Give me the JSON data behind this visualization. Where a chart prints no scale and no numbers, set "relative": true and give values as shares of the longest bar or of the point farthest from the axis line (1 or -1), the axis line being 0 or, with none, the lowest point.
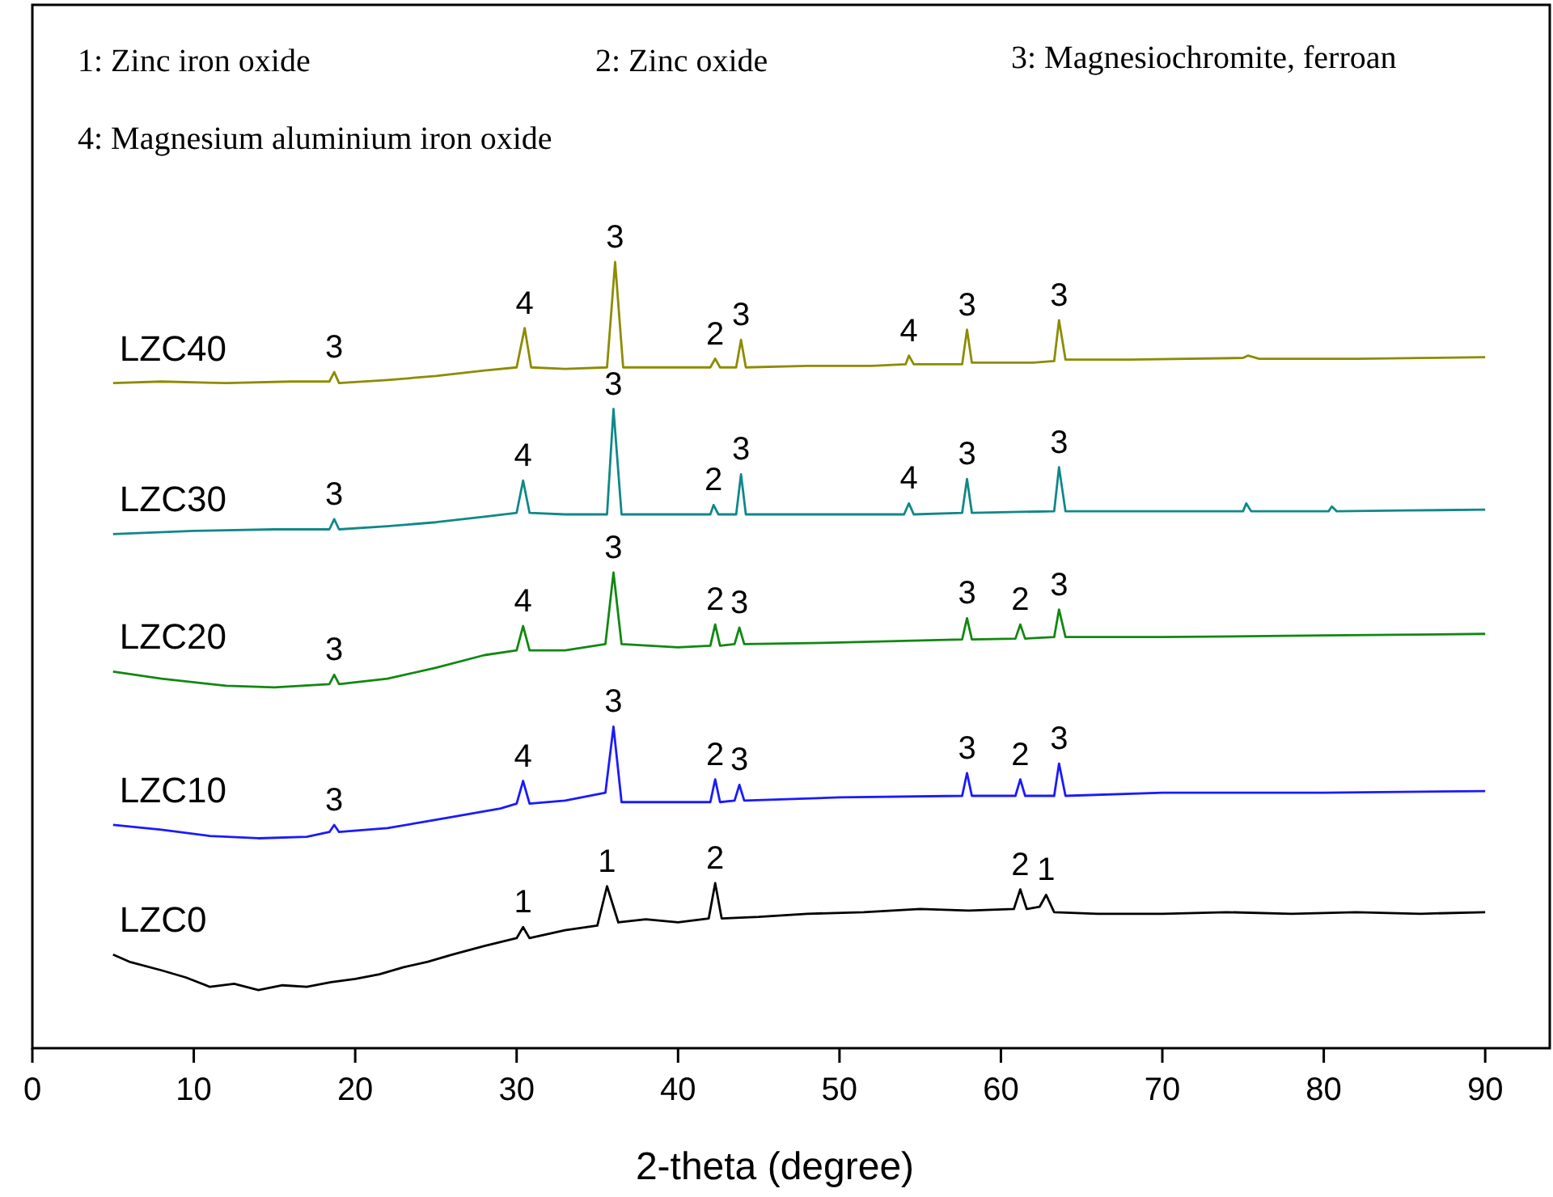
{
  "chart_data": {
    "type": "line",
    "relative": true,
    "xlabel": "2-theta (degree)",
    "xlim": [
      0,
      94
    ],
    "xticks": [
      0,
      10,
      20,
      30,
      40,
      50,
      60,
      70,
      80,
      90
    ],
    "grid": false,
    "legend": false,
    "marker": "none",
    "line_style": "solid",
    "series": [
      {
        "name": "LZC40",
        "color": "#8c8c00",
        "x": [
          5,
          8,
          12,
          16,
          18.4,
          18.7,
          19.0,
          22,
          25,
          28,
          30.0,
          30.5,
          30.9,
          33,
          35.6,
          36.1,
          36.6,
          40,
          42.0,
          42.3,
          42.6,
          43.6,
          43.9,
          44.2,
          48,
          52,
          54.1,
          54.3,
          54.6,
          57.6,
          57.9,
          58.2,
          62,
          63.3,
          63.6,
          64.0,
          68,
          75,
          75.3,
          76,
          82,
          86,
          90
        ],
        "values": [
          0.846,
          0.848,
          0.846,
          0.848,
          0.848,
          0.86,
          0.846,
          0.85,
          0.855,
          0.862,
          0.866,
          0.916,
          0.866,
          0.864,
          0.866,
          1.0,
          0.866,
          0.866,
          0.866,
          0.877,
          0.866,
          0.866,
          0.901,
          0.866,
          0.868,
          0.868,
          0.87,
          0.881,
          0.87,
          0.87,
          0.914,
          0.872,
          0.872,
          0.874,
          0.926,
          0.876,
          0.876,
          0.878,
          0.881,
          0.877,
          0.877,
          0.878,
          0.879
        ]
      },
      {
        "name": "LZC30",
        "color": "#108888",
        "x": [
          5,
          10,
          15,
          18.4,
          18.7,
          19.0,
          22,
          25,
          28,
          30.0,
          30.4,
          30.8,
          33,
          35.6,
          36.0,
          36.5,
          40,
          42.0,
          42.2,
          42.5,
          43.6,
          43.9,
          44.2,
          48,
          54.0,
          54.3,
          54.6,
          57.6,
          57.9,
          58.2,
          63.3,
          63.6,
          64.0,
          70,
          75.0,
          75.2,
          75.5,
          80.3,
          80.5,
          80.8,
          85,
          90
        ],
        "values": [
          0.654,
          0.658,
          0.66,
          0.66,
          0.673,
          0.66,
          0.664,
          0.669,
          0.676,
          0.681,
          0.722,
          0.681,
          0.679,
          0.679,
          0.813,
          0.679,
          0.679,
          0.679,
          0.691,
          0.679,
          0.679,
          0.73,
          0.679,
          0.679,
          0.679,
          0.693,
          0.679,
          0.681,
          0.724,
          0.681,
          0.683,
          0.739,
          0.683,
          0.683,
          0.683,
          0.693,
          0.683,
          0.683,
          0.689,
          0.683,
          0.684,
          0.685
        ]
      },
      {
        "name": "LZC20",
        "color": "#118811",
        "x": [
          5,
          8,
          12,
          15,
          18.4,
          18.7,
          19.0,
          22,
          25,
          28,
          30.0,
          30.4,
          30.8,
          33,
          35.5,
          36.0,
          36.5,
          40,
          42.0,
          42.3,
          42.6,
          43.5,
          43.8,
          44.1,
          50,
          57.6,
          57.9,
          58.2,
          60.9,
          61.2,
          61.5,
          63.3,
          63.6,
          64.0,
          70,
          80,
          90
        ],
        "values": [
          0.479,
          0.47,
          0.461,
          0.459,
          0.463,
          0.475,
          0.463,
          0.47,
          0.484,
          0.5,
          0.506,
          0.537,
          0.506,
          0.506,
          0.514,
          0.605,
          0.514,
          0.51,
          0.512,
          0.539,
          0.512,
          0.514,
          0.535,
          0.514,
          0.516,
          0.52,
          0.547,
          0.52,
          0.521,
          0.539,
          0.521,
          0.523,
          0.558,
          0.523,
          0.523,
          0.525,
          0.527
        ]
      },
      {
        "name": "LZC10",
        "color": "#1a1aff",
        "x": [
          5,
          8,
          11,
          14,
          17,
          18.4,
          18.7,
          19.0,
          22,
          26,
          29,
          30.0,
          30.4,
          30.8,
          33,
          35.5,
          36.0,
          36.5,
          40,
          42.0,
          42.3,
          42.6,
          43.5,
          43.8,
          44.1,
          50,
          57.6,
          57.9,
          58.2,
          60.9,
          61.2,
          61.5,
          63.3,
          63.6,
          64.0,
          70,
          80,
          90
        ],
        "values": [
          0.284,
          0.278,
          0.27,
          0.267,
          0.269,
          0.275,
          0.284,
          0.275,
          0.28,
          0.294,
          0.305,
          0.311,
          0.34,
          0.311,
          0.315,
          0.325,
          0.409,
          0.313,
          0.313,
          0.313,
          0.342,
          0.313,
          0.315,
          0.335,
          0.315,
          0.319,
          0.321,
          0.35,
          0.321,
          0.321,
          0.342,
          0.321,
          0.321,
          0.362,
          0.321,
          0.325,
          0.325,
          0.327
        ]
      },
      {
        "name": "LZC0",
        "color": "#000000",
        "x": [
          5,
          6,
          8,
          9.5,
          11,
          12.5,
          14,
          15.5,
          17,
          18.5,
          20,
          21.5,
          23,
          24.5,
          26,
          28,
          30.0,
          30.4,
          30.8,
          33,
          35.0,
          35.6,
          36.3,
          38,
          40,
          41.9,
          42.3,
          42.7,
          45,
          48,
          51.5,
          55,
          58,
          60.8,
          61.2,
          61.6,
          62.4,
          62.8,
          63.3,
          66,
          70,
          74,
          78,
          82,
          86,
          90
        ],
        "values": [
          0.119,
          0.11,
          0.099,
          0.09,
          0.078,
          0.082,
          0.074,
          0.08,
          0.078,
          0.084,
          0.088,
          0.094,
          0.103,
          0.11,
          0.119,
          0.13,
          0.14,
          0.154,
          0.14,
          0.15,
          0.156,
          0.206,
          0.16,
          0.164,
          0.16,
          0.165,
          0.21,
          0.165,
          0.167,
          0.171,
          0.173,
          0.177,
          0.175,
          0.177,
          0.202,
          0.177,
          0.18,
          0.195,
          0.173,
          0.171,
          0.171,
          0.173,
          0.171,
          0.173,
          0.171,
          0.173
        ]
      }
    ],
    "annotations": [
      "1: Zinc iron oxide",
      "2: Zinc oxide",
      "3: Magnesiochromite, ferroan",
      "4: Magnesium aluminium iron oxide",
      {
        "text": "3",
        "x": 18.7,
        "y": 0.86
      },
      {
        "text": "4",
        "x": 30.5,
        "y": 0.916
      },
      {
        "text": "3",
        "x": 36.1,
        "y": 1.0
      },
      {
        "text": "2",
        "x": 42.3,
        "y": 0.877
      },
      {
        "text": "3",
        "x": 43.9,
        "y": 0.901
      },
      {
        "text": "4",
        "x": 54.3,
        "y": 0.881
      },
      {
        "text": "3",
        "x": 57.9,
        "y": 0.914
      },
      {
        "text": "3",
        "x": 63.6,
        "y": 0.926
      },
      {
        "text": "3",
        "x": 18.7,
        "y": 0.673
      },
      {
        "text": "4",
        "x": 30.4,
        "y": 0.722
      },
      {
        "text": "3",
        "x": 36.0,
        "y": 0.813
      },
      {
        "text": "2",
        "x": 42.2,
        "y": 0.691
      },
      {
        "text": "3",
        "x": 43.9,
        "y": 0.73
      },
      {
        "text": "4",
        "x": 54.3,
        "y": 0.693
      },
      {
        "text": "3",
        "x": 57.9,
        "y": 0.724
      },
      {
        "text": "3",
        "x": 63.6,
        "y": 0.739
      },
      {
        "text": "3",
        "x": 18.7,
        "y": 0.475
      },
      {
        "text": "4",
        "x": 30.4,
        "y": 0.537
      },
      {
        "text": "3",
        "x": 36.0,
        "y": 0.605
      },
      {
        "text": "2",
        "x": 42.3,
        "y": 0.539
      },
      {
        "text": "3",
        "x": 43.8,
        "y": 0.535
      },
      {
        "text": "3",
        "x": 57.9,
        "y": 0.547
      },
      {
        "text": "2",
        "x": 61.2,
        "y": 0.539
      },
      {
        "text": "3",
        "x": 63.6,
        "y": 0.558
      },
      {
        "text": "3",
        "x": 18.7,
        "y": 0.284
      },
      {
        "text": "4",
        "x": 30.4,
        "y": 0.34
      },
      {
        "text": "3",
        "x": 36.0,
        "y": 0.409
      },
      {
        "text": "2",
        "x": 42.3,
        "y": 0.342
      },
      {
        "text": "3",
        "x": 43.8,
        "y": 0.335
      },
      {
        "text": "3",
        "x": 57.9,
        "y": 0.35
      },
      {
        "text": "2",
        "x": 61.2,
        "y": 0.342
      },
      {
        "text": "3",
        "x": 63.6,
        "y": 0.362
      },
      {
        "text": "1",
        "x": 30.4,
        "y": 0.154
      },
      {
        "text": "1",
        "x": 35.6,
        "y": 0.206
      },
      {
        "text": "2",
        "x": 42.3,
        "y": 0.21
      },
      {
        "text": "2",
        "x": 61.2,
        "y": 0.202
      },
      {
        "text": "1",
        "x": 62.8,
        "y": 0.195
      }
    ]
  }
}
